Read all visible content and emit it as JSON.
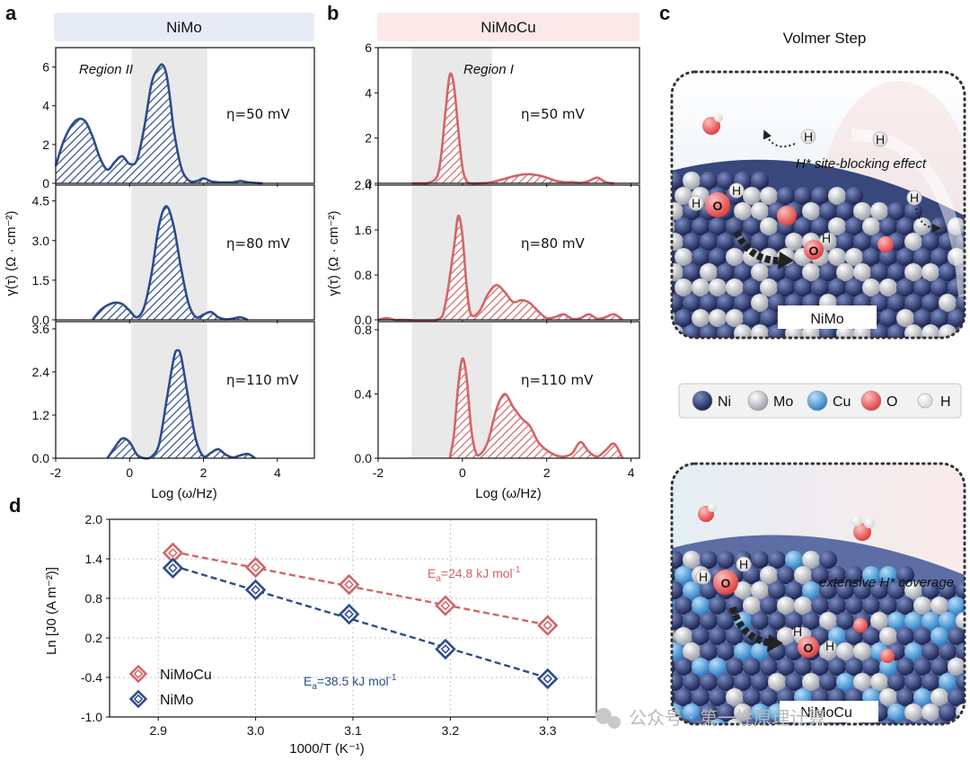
{
  "panel_labels": {
    "a": "a",
    "b": "b",
    "c": "c",
    "d": "d"
  },
  "colors": {
    "nimo": "#2e4b8c",
    "nimocu": "#d46467",
    "region": "#e9e9e9",
    "nimo_header": "#e6ebf6",
    "nimocu_header": "#fbe8e8"
  },
  "panel_a": {
    "header": "NiMo",
    "region": "Region  II"
  },
  "panel_b": {
    "header": "NiMoCu",
    "region": "Region  I"
  },
  "drt": {
    "xlabel": "Log (ω/Hz)",
    "ylabel": "γ(τ) (Ω · cm⁻²)",
    "xticks": [
      "-2",
      "0",
      "2",
      "4"
    ],
    "conditions": [
      "η=50 mV",
      "η=80 mV",
      "η=110 mV"
    ]
  },
  "chart_data": [
    {
      "type": "area",
      "title": "NiMo — η=50 mV",
      "xlabel": "Log (ω/Hz)",
      "ylabel": "γ(τ) (Ω · cm⁻²)",
      "xlim": [
        -2,
        5
      ],
      "ylim": [
        0,
        7
      ],
      "yticks": [
        0,
        2,
        4,
        6
      ],
      "ytick_labels": [
        "0",
        "2",
        "4",
        "6"
      ],
      "region_x": [
        0.05,
        2.1
      ],
      "x": [
        -2.0,
        -1.8,
        -1.6,
        -1.4,
        -1.2,
        -1.0,
        -0.8,
        -0.6,
        -0.4,
        -0.2,
        0.0,
        0.2,
        0.4,
        0.6,
        0.8,
        0.9,
        1.0,
        1.1,
        1.2,
        1.4,
        1.6,
        1.8,
        2.0,
        2.2,
        2.4,
        2.6,
        2.8,
        3.0,
        3.2,
        3.4,
        3.6
      ],
      "y": [
        0.9,
        2.1,
        2.9,
        3.3,
        3.2,
        2.4,
        1.3,
        0.7,
        1.1,
        1.4,
        1.0,
        1.2,
        2.9,
        5.2,
        6.0,
        6.1,
        5.6,
        4.3,
        2.7,
        0.8,
        0.15,
        0.1,
        0.25,
        0.1,
        0.05,
        0.04,
        0.05,
        0.12,
        0.05,
        0.02,
        0.0
      ]
    },
    {
      "type": "area",
      "title": "NiMo — η=80 mV",
      "xlabel": "Log (ω/Hz)",
      "ylabel": "γ(τ) (Ω · cm⁻²)",
      "xlim": [
        -2,
        5
      ],
      "ylim": [
        0,
        5.1
      ],
      "yticks": [
        0,
        1.5,
        3.0,
        4.5
      ],
      "ytick_labels": [
        "0.0",
        "1.5",
        "3.0",
        "4.5"
      ],
      "region_x": [
        0.05,
        2.1
      ],
      "x": [
        -1.0,
        -0.8,
        -0.6,
        -0.4,
        -0.2,
        0.0,
        0.2,
        0.4,
        0.6,
        0.8,
        1.0,
        1.2,
        1.4,
        1.6,
        1.8,
        2.0,
        2.2,
        2.4,
        2.6,
        2.8,
        3.0,
        3.2
      ],
      "y": [
        0.0,
        0.35,
        0.55,
        0.65,
        0.6,
        0.35,
        0.1,
        0.5,
        1.8,
        3.6,
        4.3,
        3.5,
        1.9,
        0.6,
        0.1,
        0.2,
        0.3,
        0.1,
        0.02,
        0.05,
        0.1,
        0.0
      ]
    },
    {
      "type": "area",
      "title": "NiMo — η=110 mV",
      "xlabel": "Log (ω/Hz)",
      "ylabel": "γ(τ) (Ω · cm⁻²)",
      "xlim": [
        -2,
        5
      ],
      "ylim": [
        0,
        3.8
      ],
      "yticks": [
        0,
        1.2,
        2.4,
        3.6
      ],
      "ytick_labels": [
        "0.0",
        "1.2",
        "2.4",
        "3.6"
      ],
      "region_x": [
        0.05,
        2.1
      ],
      "x": [
        -0.6,
        -0.4,
        -0.2,
        0.0,
        0.2,
        0.4,
        0.6,
        0.8,
        1.0,
        1.2,
        1.3,
        1.4,
        1.6,
        1.8,
        2.0,
        2.2,
        2.4,
        2.6,
        2.8,
        3.0,
        3.2,
        3.4
      ],
      "y": [
        0.0,
        0.3,
        0.55,
        0.45,
        0.1,
        0.0,
        0.05,
        0.4,
        1.6,
        2.8,
        3.0,
        2.8,
        1.6,
        0.5,
        0.05,
        0.15,
        0.25,
        0.1,
        0.02,
        0.08,
        0.12,
        0.0
      ]
    },
    {
      "type": "area",
      "title": "NiMoCu — η=50 mV",
      "xlabel": "Log (ω/Hz)",
      "ylabel": "γ(τ) (Ω · cm⁻²)",
      "xlim": [
        -2,
        4.2
      ],
      "ylim": [
        0,
        6
      ],
      "yticks": [
        0,
        2,
        4,
        6
      ],
      "ytick_labels": [
        "0",
        "2",
        "4",
        "6"
      ],
      "region_x": [
        -1.2,
        0.7
      ],
      "x": [
        -1.2,
        -1.0,
        -0.8,
        -0.6,
        -0.5,
        -0.4,
        -0.3,
        -0.2,
        -0.1,
        0.0,
        0.1,
        0.2,
        0.4,
        0.6,
        0.8,
        1.0,
        1.2,
        1.4,
        1.6,
        1.8,
        2.0,
        2.2,
        2.4,
        2.6,
        2.8,
        3.0,
        3.2,
        3.4,
        3.6
      ],
      "y": [
        0.0,
        0.0,
        0.02,
        0.3,
        1.3,
        3.2,
        4.8,
        4.3,
        2.4,
        0.7,
        0.1,
        0.0,
        0.0,
        0.02,
        0.1,
        0.2,
        0.3,
        0.38,
        0.4,
        0.35,
        0.25,
        0.12,
        0.05,
        0.05,
        0.02,
        0.1,
        0.25,
        0.05,
        0.0
      ]
    },
    {
      "type": "area",
      "title": "NiMoCu — η=80 mV",
      "xlabel": "Log (ω/Hz)",
      "ylabel": "γ(τ) (Ω · cm⁻²)",
      "xlim": [
        -2,
        4.2
      ],
      "ylim": [
        0,
        2.4
      ],
      "yticks": [
        0,
        0.8,
        1.6,
        2.4
      ],
      "ytick_labels": [
        "0.0",
        "0.8",
        "1.6",
        "2.4"
      ],
      "region_x": [
        -1.2,
        0.7
      ],
      "x": [
        -2.0,
        -1.8,
        -1.6,
        -1.4,
        -0.6,
        -0.4,
        -0.2,
        -0.1,
        0.0,
        0.1,
        0.2,
        0.4,
        0.6,
        0.8,
        1.0,
        1.2,
        1.4,
        1.6,
        1.8,
        2.0,
        2.2,
        2.4,
        2.6,
        2.8,
        3.0,
        3.2,
        3.4,
        3.6,
        3.8
      ],
      "y": [
        0.0,
        0.03,
        0.0,
        0.0,
        0.0,
        0.3,
        1.3,
        1.85,
        1.5,
        0.6,
        0.1,
        0.15,
        0.45,
        0.62,
        0.5,
        0.32,
        0.35,
        0.3,
        0.15,
        0.03,
        0.05,
        0.1,
        0.02,
        0.03,
        0.1,
        0.02,
        0.05,
        0.1,
        0.0
      ]
    },
    {
      "type": "area",
      "title": "NiMoCu — η=110 mV",
      "xlabel": "Log (ω/Hz)",
      "ylabel": "γ(τ) (Ω · cm⁻²)",
      "xlim": [
        -2,
        4.2
      ],
      "ylim": [
        0,
        0.85
      ],
      "yticks": [
        0,
        0.4,
        0.8
      ],
      "ytick_labels": [
        "0.0",
        "0.4",
        "0.8"
      ],
      "region_x": [
        -1.2,
        0.7
      ],
      "x": [
        -0.3,
        -0.2,
        -0.1,
        0.0,
        0.1,
        0.2,
        0.3,
        0.4,
        0.6,
        0.8,
        1.0,
        1.2,
        1.4,
        1.6,
        1.8,
        2.0,
        2.2,
        2.4,
        2.6,
        2.8,
        3.0,
        3.2,
        3.4,
        3.6,
        3.8
      ],
      "y": [
        0.0,
        0.15,
        0.45,
        0.62,
        0.5,
        0.2,
        0.05,
        0.02,
        0.1,
        0.3,
        0.4,
        0.32,
        0.25,
        0.2,
        0.1,
        0.05,
        0.02,
        0.01,
        0.03,
        0.1,
        0.04,
        0.01,
        0.05,
        0.09,
        0.0
      ]
    },
    {
      "type": "scatter",
      "title": "Arrhenius plot",
      "xlabel": "1000/T (K⁻¹)",
      "ylabel": "Ln [J0 (A m⁻²)]",
      "xlim": [
        2.85,
        3.35
      ],
      "ylim": [
        -1.0,
        2.0
      ],
      "xticks": [
        "2.9",
        "3.0",
        "3.1",
        "3.2",
        "3.3"
      ],
      "yticks": [
        "-1.0",
        "-0.4",
        "0.2",
        "0.8",
        "1.4",
        "2.0"
      ],
      "grid": true,
      "legend_position": "bottom-left",
      "series": [
        {
          "name": "NiMoCu",
          "color": "#d46467",
          "x": [
            2.915,
            3.0,
            3.096,
            3.195,
            3.3
          ],
          "y": [
            1.49,
            1.27,
            1.01,
            0.69,
            0.39
          ],
          "fit_label": "=24.8 kJ mol",
          "fit_sub": "a",
          "fit_sup": "-1"
        },
        {
          "name": "NiMo",
          "color": "#2e4b8c",
          "x": [
            2.915,
            3.0,
            3.096,
            3.195,
            3.3
          ],
          "y": [
            1.26,
            0.93,
            0.56,
            0.03,
            -0.42
          ],
          "fit_label": "=38.5 kJ mol",
          "fit_sub": "a",
          "fit_sup": "-1"
        }
      ]
    }
  ],
  "panel_c": {
    "title": "Volmer Step",
    "top_caption": "NiMo",
    "top_effect": "H* site-blocking effect",
    "bottom_caption": "NiMoCu",
    "bottom_effect": "extensive H* coverage",
    "atom_H": "H",
    "atom_O": "O",
    "legend": [
      {
        "label": "Ni",
        "color": "#26356b"
      },
      {
        "label": "Mo",
        "color": "#c7c9cf"
      },
      {
        "label": "Cu",
        "color": "#4d9fdd"
      },
      {
        "label": "O",
        "color": "#ef6b6b"
      },
      {
        "label": "H",
        "color": "#f7f7f7"
      }
    ]
  },
  "panel_d": {
    "e_letter": "E"
  },
  "watermark": "公众号 · 第一性原理计算"
}
